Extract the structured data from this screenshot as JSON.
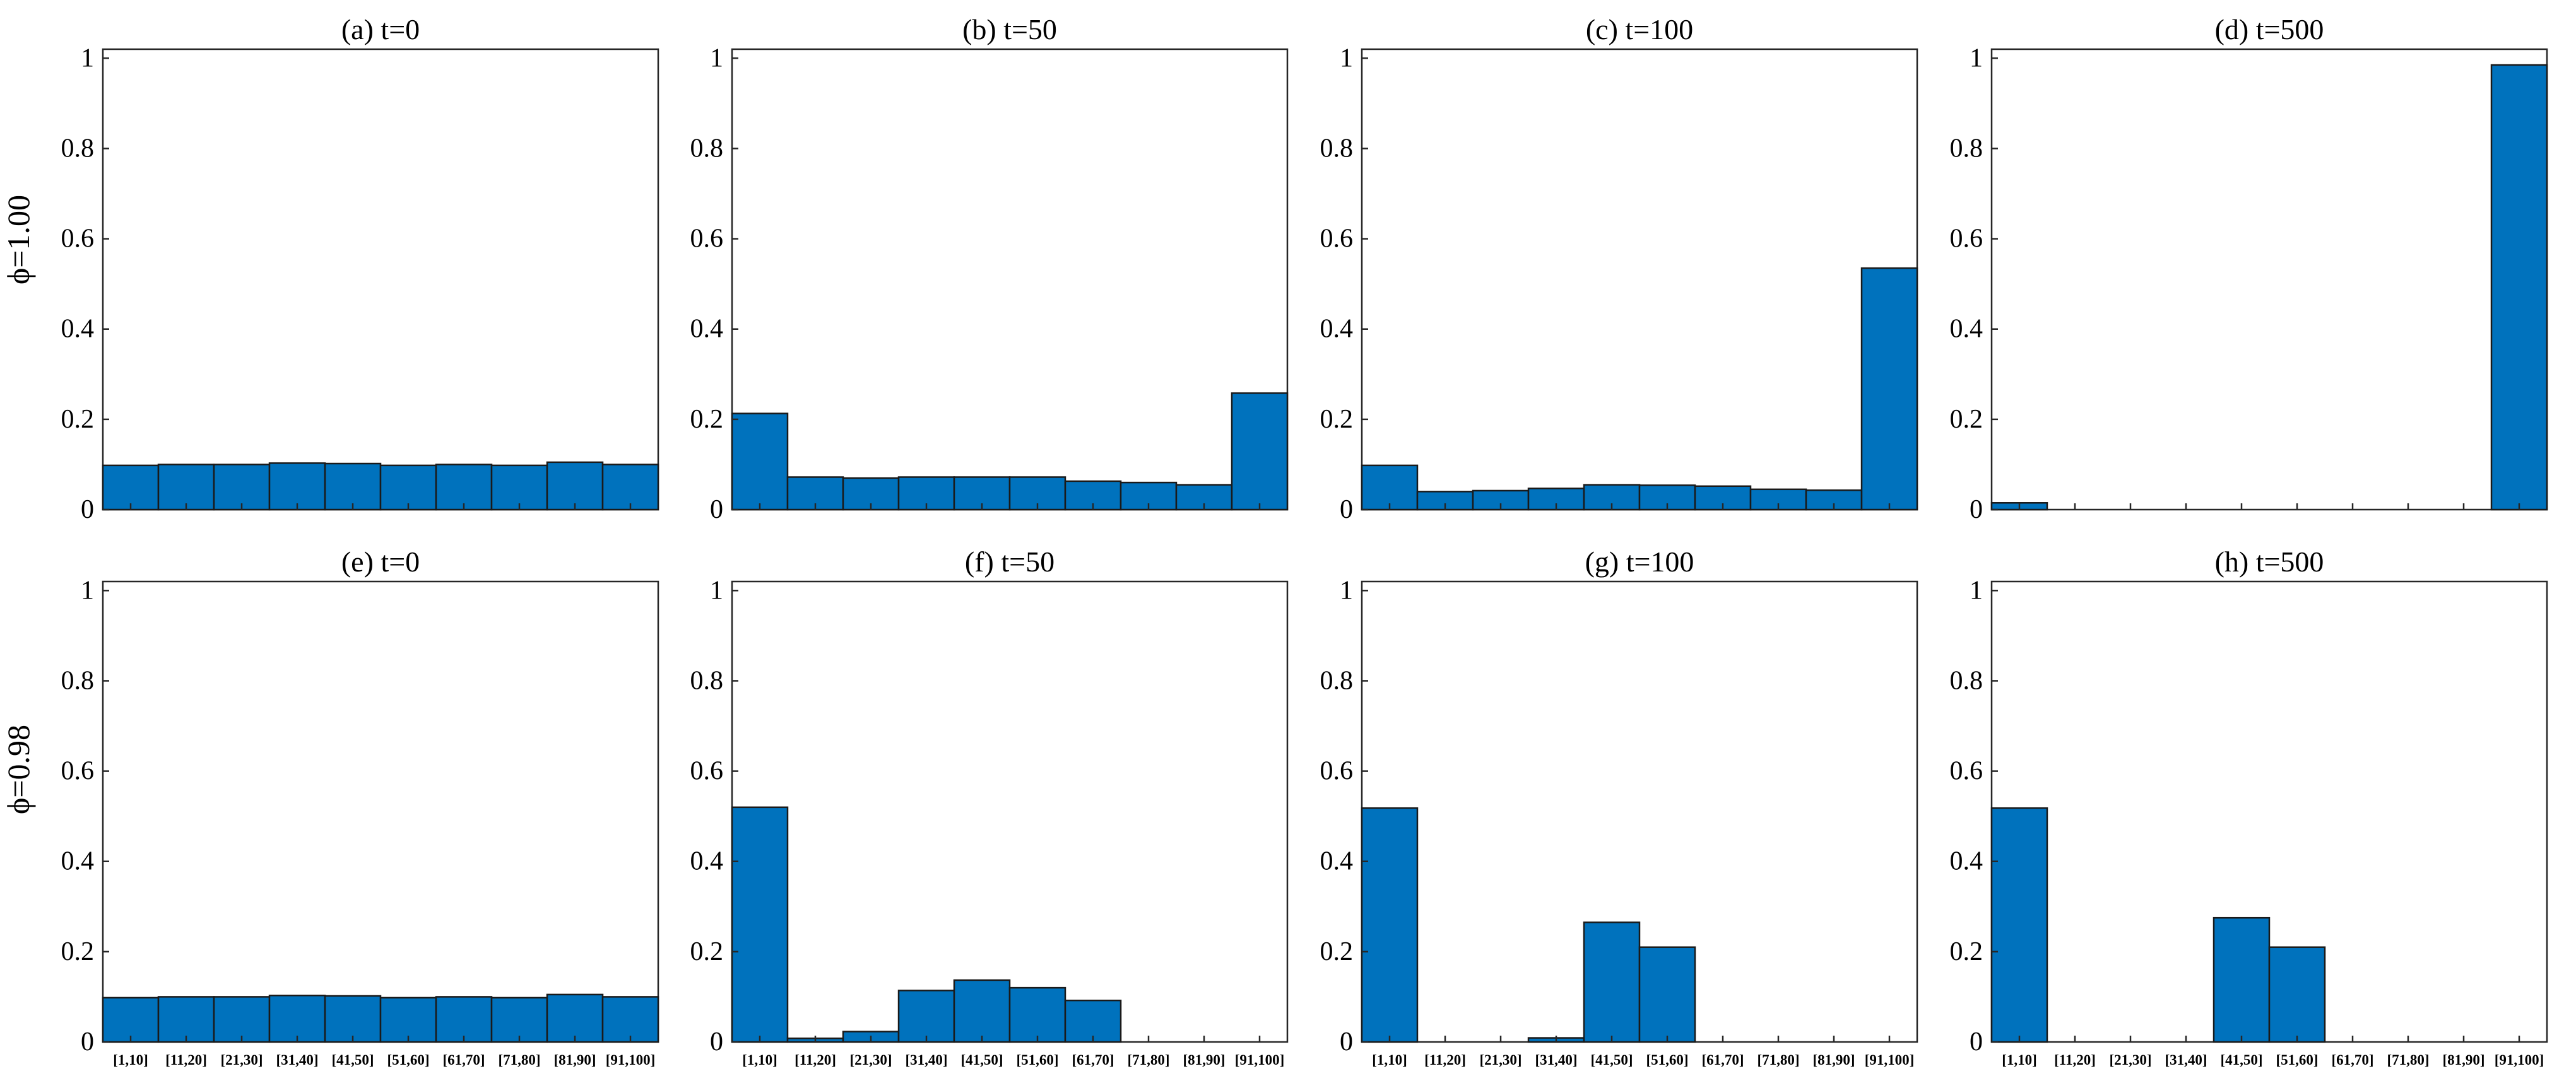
{
  "figure": {
    "row_labels": [
      "ϕ=1.00",
      "ϕ=0.98"
    ]
  },
  "colors": {
    "bar_fill": "#0072BD",
    "bar_edge": "#1a1a1a",
    "axes": "#262626"
  },
  "chart_data": [
    {
      "type": "bar",
      "title": "(a) t=0",
      "categories": [
        "[1,10]",
        "[11,20]",
        "[21,30]",
        "[31,40]",
        "[41,50]",
        "[51,60]",
        "[61,70]",
        "[71,80]",
        "[81,90]",
        "[91,100]"
      ],
      "values": [
        0.098,
        0.1,
        0.1,
        0.103,
        0.102,
        0.098,
        0.1,
        0.098,
        0.105,
        0.1
      ],
      "ylim": [
        0,
        1.02
      ],
      "yticks": [
        0,
        0.2,
        0.4,
        0.6,
        0.8,
        1
      ],
      "ytick_labels": [
        "0",
        "0.2",
        "0.4",
        "0.6",
        "0.8",
        "1"
      ],
      "xlabel": "",
      "ylabel": "",
      "show_x_tick_labels": false
    },
    {
      "type": "bar",
      "title": "(b) t=50",
      "categories": [
        "[1,10]",
        "[11,20]",
        "[21,30]",
        "[31,40]",
        "[41,50]",
        "[51,60]",
        "[61,70]",
        "[71,80]",
        "[81,90]",
        "[91,100]"
      ],
      "values": [
        0.213,
        0.072,
        0.07,
        0.072,
        0.072,
        0.072,
        0.063,
        0.06,
        0.055,
        0.258
      ],
      "ylim": [
        0,
        1.02
      ],
      "yticks": [
        0,
        0.2,
        0.4,
        0.6,
        0.8,
        1
      ],
      "ytick_labels": [
        "0",
        "0.2",
        "0.4",
        "0.6",
        "0.8",
        "1"
      ],
      "xlabel": "",
      "ylabel": "",
      "show_x_tick_labels": false
    },
    {
      "type": "bar",
      "title": "(c) t=100",
      "categories": [
        "[1,10]",
        "[11,20]",
        "[21,30]",
        "[31,40]",
        "[41,50]",
        "[51,60]",
        "[61,70]",
        "[71,80]",
        "[81,90]",
        "[91,100]"
      ],
      "values": [
        0.098,
        0.04,
        0.042,
        0.047,
        0.055,
        0.054,
        0.052,
        0.045,
        0.043,
        0.535
      ],
      "ylim": [
        0,
        1.02
      ],
      "yticks": [
        0,
        0.2,
        0.4,
        0.6,
        0.8,
        1
      ],
      "ytick_labels": [
        "0",
        "0.2",
        "0.4",
        "0.6",
        "0.8",
        "1"
      ],
      "xlabel": "",
      "ylabel": "",
      "show_x_tick_labels": false
    },
    {
      "type": "bar",
      "title": "(d) t=500",
      "categories": [
        "[1,10]",
        "[11,20]",
        "[21,30]",
        "[31,40]",
        "[41,50]",
        "[51,60]",
        "[61,70]",
        "[71,80]",
        "[81,90]",
        "[91,100]"
      ],
      "values": [
        0.015,
        0,
        0,
        0,
        0,
        0,
        0,
        0,
        0,
        0.985
      ],
      "ylim": [
        0,
        1.02
      ],
      "yticks": [
        0,
        0.2,
        0.4,
        0.6,
        0.8,
        1
      ],
      "ytick_labels": [
        "0",
        "0.2",
        "0.4",
        "0.6",
        "0.8",
        "1"
      ],
      "xlabel": "",
      "ylabel": "",
      "show_x_tick_labels": false
    },
    {
      "type": "bar",
      "title": "(e) t=0",
      "categories": [
        "[1,10]",
        "[11,20]",
        "[21,30]",
        "[31,40]",
        "[41,50]",
        "[51,60]",
        "[61,70]",
        "[71,80]",
        "[81,90]",
        "[91,100]"
      ],
      "values": [
        0.098,
        0.1,
        0.1,
        0.103,
        0.102,
        0.098,
        0.1,
        0.098,
        0.105,
        0.1
      ],
      "ylim": [
        0,
        1.02
      ],
      "yticks": [
        0,
        0.2,
        0.4,
        0.6,
        0.8,
        1
      ],
      "ytick_labels": [
        "0",
        "0.2",
        "0.4",
        "0.6",
        "0.8",
        "1"
      ],
      "xlabel": "",
      "ylabel": "",
      "show_x_tick_labels": true
    },
    {
      "type": "bar",
      "title": "(f) t=50",
      "categories": [
        "[1,10]",
        "[11,20]",
        "[21,30]",
        "[31,40]",
        "[41,50]",
        "[51,60]",
        "[61,70]",
        "[71,80]",
        "[81,90]",
        "[91,100]"
      ],
      "values": [
        0.52,
        0.008,
        0.023,
        0.114,
        0.137,
        0.12,
        0.092,
        0,
        0,
        0
      ],
      "ylim": [
        0,
        1.02
      ],
      "yticks": [
        0,
        0.2,
        0.4,
        0.6,
        0.8,
        1
      ],
      "ytick_labels": [
        "0",
        "0.2",
        "0.4",
        "0.6",
        "0.8",
        "1"
      ],
      "xlabel": "",
      "ylabel": "",
      "show_x_tick_labels": true
    },
    {
      "type": "bar",
      "title": "(g) t=100",
      "categories": [
        "[1,10]",
        "[11,20]",
        "[21,30]",
        "[31,40]",
        "[41,50]",
        "[51,60]",
        "[61,70]",
        "[71,80]",
        "[81,90]",
        "[91,100]"
      ],
      "values": [
        0.518,
        0,
        0,
        0.009,
        0.265,
        0.21,
        0,
        0,
        0,
        0
      ],
      "ylim": [
        0,
        1.02
      ],
      "yticks": [
        0,
        0.2,
        0.4,
        0.6,
        0.8,
        1
      ],
      "ytick_labels": [
        "0",
        "0.2",
        "0.4",
        "0.6",
        "0.8",
        "1"
      ],
      "xlabel": "",
      "ylabel": "",
      "show_x_tick_labels": true
    },
    {
      "type": "bar",
      "title": "(h) t=500",
      "categories": [
        "[1,10]",
        "[11,20]",
        "[21,30]",
        "[31,40]",
        "[41,50]",
        "[51,60]",
        "[61,70]",
        "[71,80]",
        "[81,90]",
        "[91,100]"
      ],
      "values": [
        0.518,
        0,
        0,
        0,
        0.275,
        0.21,
        0,
        0,
        0,
        0
      ],
      "ylim": [
        0,
        1.02
      ],
      "yticks": [
        0,
        0.2,
        0.4,
        0.6,
        0.8,
        1
      ],
      "ytick_labels": [
        "0",
        "0.2",
        "0.4",
        "0.6",
        "0.8",
        "1"
      ],
      "xlabel": "",
      "ylabel": "",
      "show_x_tick_labels": true
    }
  ]
}
